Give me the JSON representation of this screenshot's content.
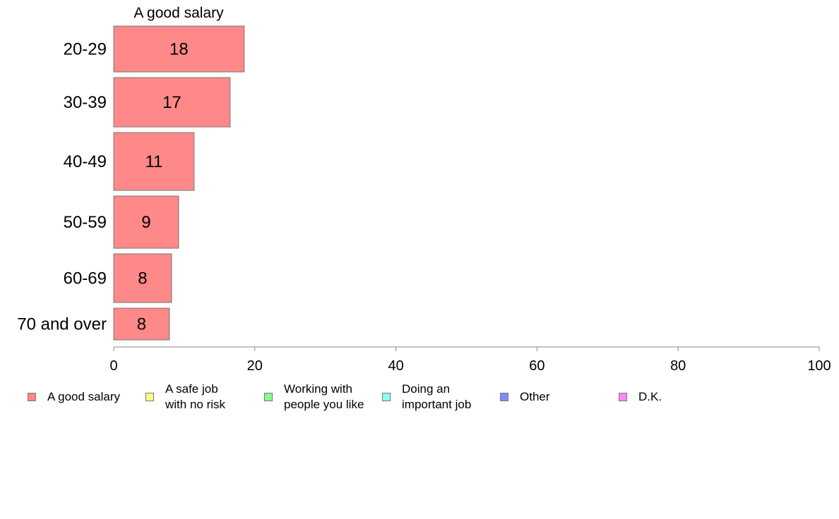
{
  "chart_data": {
    "type": "bar",
    "orientation": "horizontal",
    "title": "A good salary",
    "categories": [
      "20-29",
      "30-39",
      "40-49",
      "50-59",
      "60-69",
      "70 and over"
    ],
    "series": [
      {
        "name": "A good salary",
        "values": [
          18.5,
          16.5,
          11.4,
          9.2,
          8.2,
          7.9
        ],
        "labels": [
          "18",
          "17",
          "11",
          "9",
          "8",
          "8"
        ],
        "color": "#ff8888"
      }
    ],
    "xlim": [
      0,
      100
    ],
    "xticks": [
      "0",
      "20",
      "40",
      "60",
      "80",
      "100"
    ],
    "grid": false,
    "legend_position": "bottom",
    "legend": [
      {
        "label": "A good salary",
        "color": "#ff8888"
      },
      {
        "label": "A safe job\nwith no risk",
        "color": "#ffff88"
      },
      {
        "label": "Working with\npeople you like",
        "color": "#88ff88"
      },
      {
        "label": "Doing an\nimportant job",
        "color": "#88ffff"
      },
      {
        "label": "Other",
        "color": "#8888ff"
      },
      {
        "label": "D.K.",
        "color": "#ff88ff"
      }
    ]
  }
}
